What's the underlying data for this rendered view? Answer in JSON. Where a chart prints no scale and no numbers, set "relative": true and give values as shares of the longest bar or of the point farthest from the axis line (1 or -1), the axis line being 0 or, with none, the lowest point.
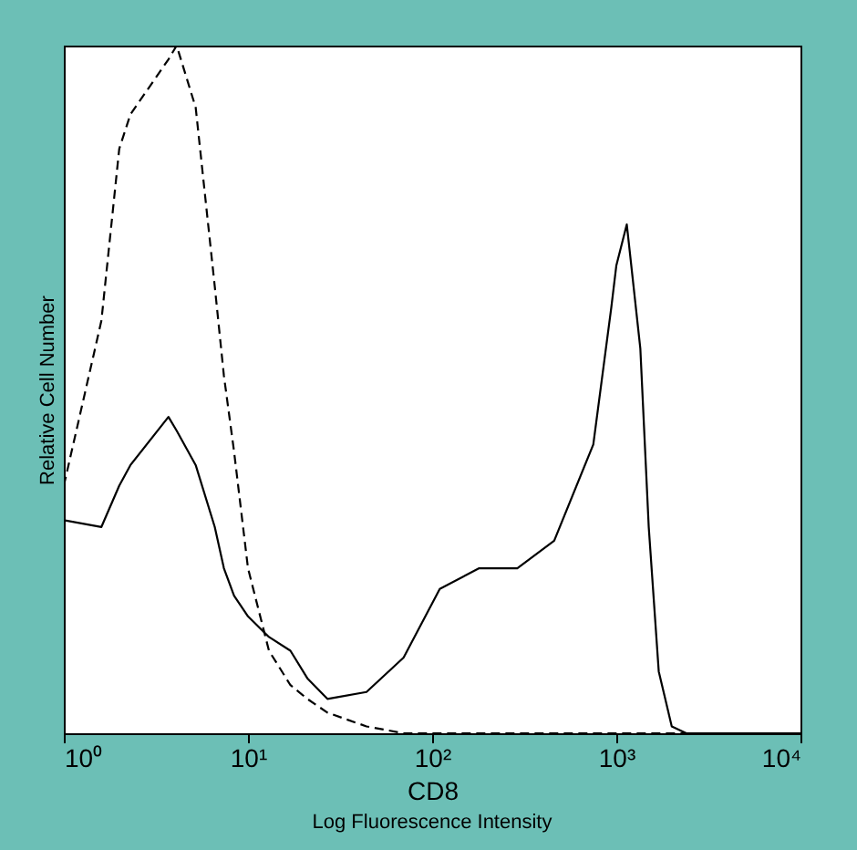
{
  "chart_data": {
    "type": "line",
    "xlabel": "CD8",
    "ylabel": "Relative Cell Number",
    "annotations": [
      "Log Fluorescence Intensity"
    ],
    "log": "x",
    "relative": true,
    "xlim": [
      1,
      10000
    ],
    "xticks": [
      {
        "value": 1,
        "label": "10⁰"
      },
      {
        "value": 10,
        "label": "10¹"
      },
      {
        "value": 100,
        "label": "10²"
      },
      {
        "value": 1000,
        "label": "10³"
      },
      {
        "value": 10000,
        "label": "10⁴"
      }
    ],
    "grid": false,
    "series": [
      {
        "color": "#000000",
        "line_style": "dashed",
        "x": [
          1,
          1.6,
          2.0,
          2.3,
          3.7,
          4.1,
          5.2,
          6.6,
          7.4,
          8.4,
          10,
          13,
          17,
          21,
          27,
          44,
          70,
          110,
          1000,
          10000
        ],
        "values": [
          0.36,
          0.6,
          0.85,
          0.9,
          0.98,
          1.0,
          0.91,
          0.65,
          0.52,
          0.41,
          0.24,
          0.12,
          0.07,
          0.05,
          0.03,
          0.01,
          0,
          0,
          0,
          0
        ]
      },
      {
        "color": "#000000",
        "line_style": "solid",
        "x": [
          1,
          1.6,
          2.0,
          2.3,
          3.7,
          4.1,
          5.2,
          6.6,
          7.4,
          8.4,
          10,
          13,
          17,
          21,
          27,
          44,
          70,
          110,
          180,
          290,
          460,
          750,
          940,
          1000,
          1140,
          1350,
          1500,
          1700,
          2000,
          2400,
          10000
        ],
        "values": [
          0.31,
          0.3,
          0.36,
          0.39,
          0.46,
          0.44,
          0.39,
          0.3,
          0.24,
          0.2,
          0.17,
          0.14,
          0.12,
          0.08,
          0.05,
          0.06,
          0.11,
          0.21,
          0.24,
          0.24,
          0.28,
          0.42,
          0.62,
          0.68,
          0.74,
          0.56,
          0.3,
          0.09,
          0.01,
          0,
          0
        ]
      }
    ]
  }
}
